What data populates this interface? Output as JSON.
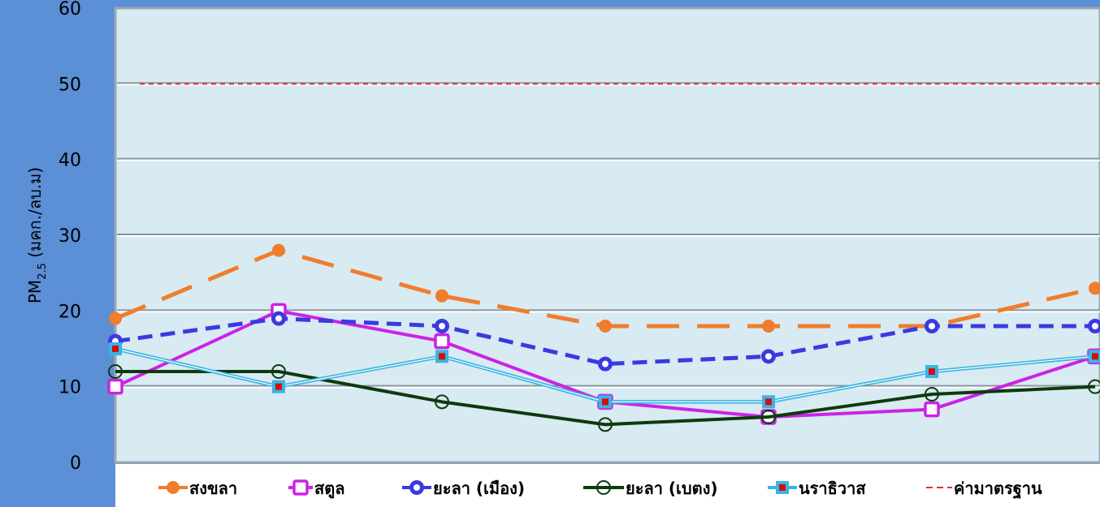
{
  "chart_data": {
    "type": "line",
    "title": "",
    "xlabel": "",
    "ylabel": "PM",
    "ylabel_sub": "2.5",
    "ylabel_unit": " (มคก./ลบ.ม)",
    "ylim": [
      0,
      60
    ],
    "yticks": [
      "0",
      "10",
      "20",
      "30",
      "40",
      "50",
      "60"
    ],
    "x": [
      1,
      2,
      3,
      4,
      5,
      6,
      7
    ],
    "grid": true,
    "legend_position": "bottom",
    "series": [
      {
        "name": "สงขลา",
        "color": "#f07d2b",
        "style": "long-dash",
        "marker": "circle-filled",
        "values": [
          19,
          28,
          22,
          18,
          18,
          18,
          23
        ]
      },
      {
        "name": "สตูล",
        "color": "#cc22e6",
        "style": "solid",
        "marker": "square-open",
        "values": [
          10,
          20,
          16,
          8,
          6,
          7,
          14
        ]
      },
      {
        "name": "ยะลา (เมือง)",
        "color": "#3a3ae0",
        "style": "dash",
        "marker": "circle-ring",
        "values": [
          16,
          19,
          18,
          13,
          14,
          18,
          18
        ]
      },
      {
        "name": "ยะลา (เบตง)",
        "color": "#0d3a0d",
        "style": "solid",
        "marker": "circle-open",
        "values": [
          12,
          12,
          8,
          5,
          6,
          9,
          10
        ]
      },
      {
        "name": "นราธิวาส",
        "color": "#3ab4e2",
        "style": "solid",
        "marker": "square-red-center",
        "values": [
          15,
          10,
          14,
          8,
          8,
          12,
          14
        ]
      }
    ],
    "reference_line": {
      "name": "ค่ามาตรฐาน",
      "value": 50,
      "color": "#e03030",
      "style": "dash"
    }
  }
}
